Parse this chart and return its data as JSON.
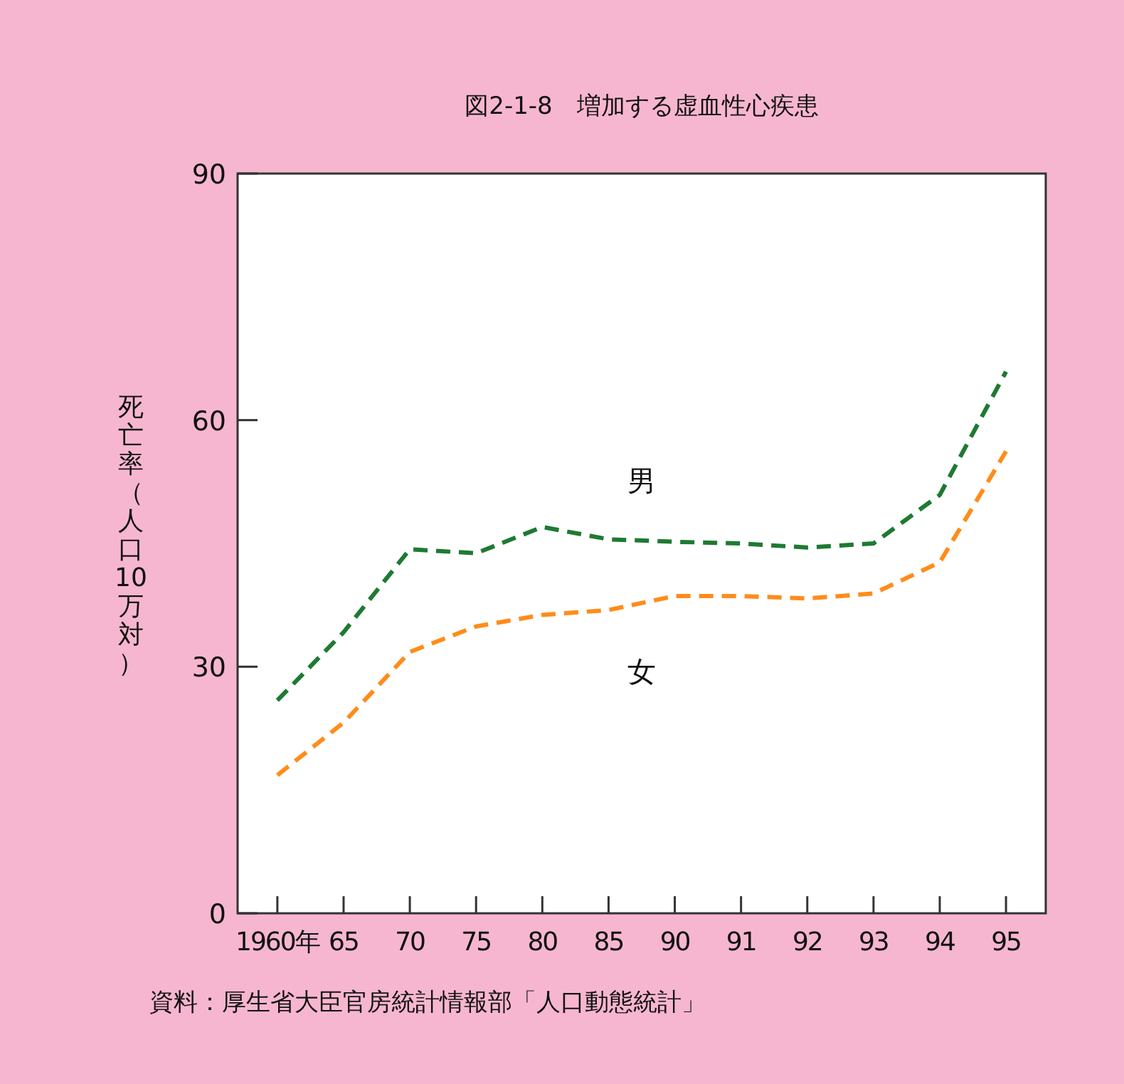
{
  "chart_data": {
    "type": "line",
    "title": "図2-1-8　増加する虚血性心疾患",
    "ylabel": "死亡率（人口10万対）",
    "categories": [
      "1960年",
      "65",
      "70",
      "75",
      "80",
      "85",
      "90",
      "91",
      "92",
      "93",
      "94",
      "95"
    ],
    "series": [
      {
        "name": "男",
        "color": "#1e7a32",
        "values": [
          25.9,
          34.2,
          44.3,
          43.8,
          47.0,
          45.5,
          45.2,
          45.0,
          44.5,
          45.0,
          50.9,
          65.9
        ]
      },
      {
        "name": "女",
        "color": "#ff8c1a",
        "values": [
          16.8,
          23.2,
          31.8,
          34.9,
          36.3,
          36.9,
          38.6,
          38.6,
          38.3,
          38.9,
          42.7,
          56.2
        ]
      }
    ],
    "ylim": [
      0,
      90
    ],
    "yticks": [
      0,
      30,
      60,
      90
    ],
    "grid": false,
    "legend": false,
    "marker": "none",
    "line_style": "dashed",
    "annotations": [
      "資料：厚生省大臣官房統計情報部「人口動態統計」"
    ]
  }
}
